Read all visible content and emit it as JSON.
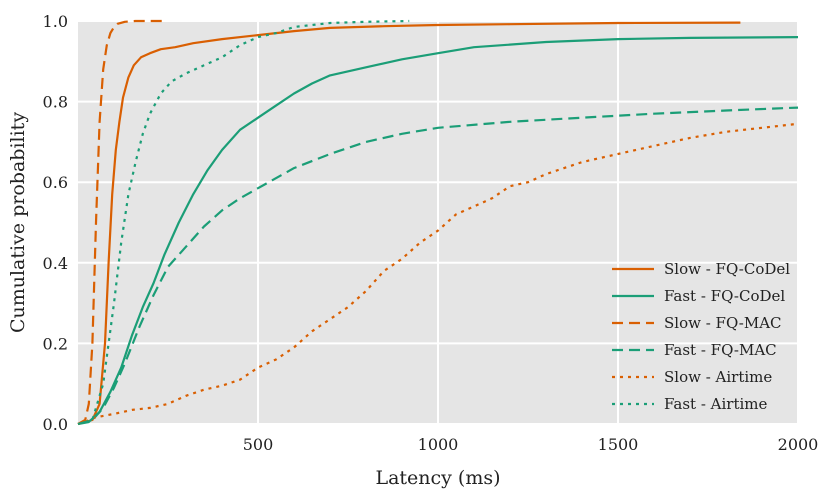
{
  "chart_data": {
    "type": "line",
    "title": "",
    "xlabel": "Latency (ms)",
    "ylabel": "Cumulative probability",
    "xlim": [
      0,
      2000
    ],
    "ylim": [
      0,
      1.0
    ],
    "xticks": [
      "500",
      "1000",
      "1500",
      "2000"
    ],
    "yticks": [
      "0.0",
      "0.2",
      "0.4",
      "0.6",
      "0.8",
      "1.0"
    ],
    "grid": true,
    "legend_position": "lower-right",
    "background_color": "#e5e5e5",
    "series": [
      {
        "name": "Slow - FQ-CoDel",
        "color": "#d95f02",
        "dash": "solid",
        "points": [
          [
            0,
            0
          ],
          [
            40,
            0.01
          ],
          [
            60,
            0.05
          ],
          [
            75,
            0.2
          ],
          [
            85,
            0.4
          ],
          [
            95,
            0.57
          ],
          [
            105,
            0.68
          ],
          [
            115,
            0.75
          ],
          [
            125,
            0.81
          ],
          [
            140,
            0.86
          ],
          [
            155,
            0.89
          ],
          [
            175,
            0.91
          ],
          [
            200,
            0.92
          ],
          [
            230,
            0.93
          ],
          [
            270,
            0.935
          ],
          [
            320,
            0.945
          ],
          [
            400,
            0.955
          ],
          [
            500,
            0.965
          ],
          [
            600,
            0.975
          ],
          [
            700,
            0.983
          ],
          [
            850,
            0.987
          ],
          [
            1000,
            0.99
          ],
          [
            1200,
            0.992
          ],
          [
            1500,
            0.995
          ],
          [
            1840,
            0.996
          ]
        ]
      },
      {
        "name": "Fast - FQ-CoDel",
        "color": "#1b9e77",
        "dash": "solid",
        "points": [
          [
            0,
            0
          ],
          [
            30,
            0.005
          ],
          [
            60,
            0.03
          ],
          [
            90,
            0.08
          ],
          [
            120,
            0.14
          ],
          [
            150,
            0.22
          ],
          [
            180,
            0.29
          ],
          [
            210,
            0.35
          ],
          [
            240,
            0.42
          ],
          [
            280,
            0.5
          ],
          [
            320,
            0.57
          ],
          [
            360,
            0.63
          ],
          [
            400,
            0.68
          ],
          [
            450,
            0.73
          ],
          [
            500,
            0.76
          ],
          [
            550,
            0.79
          ],
          [
            600,
            0.82
          ],
          [
            650,
            0.845
          ],
          [
            700,
            0.865
          ],
          [
            800,
            0.885
          ],
          [
            900,
            0.905
          ],
          [
            1000,
            0.92
          ],
          [
            1100,
            0.935
          ],
          [
            1300,
            0.948
          ],
          [
            1500,
            0.955
          ],
          [
            1700,
            0.958
          ],
          [
            2000,
            0.96
          ]
        ]
      },
      {
        "name": "Slow - FQ-MAC",
        "color": "#d95f02",
        "dash": "dashed",
        "points": [
          [
            0,
            0
          ],
          [
            20,
            0.01
          ],
          [
            30,
            0.05
          ],
          [
            40,
            0.2
          ],
          [
            50,
            0.5
          ],
          [
            60,
            0.75
          ],
          [
            70,
            0.88
          ],
          [
            80,
            0.94
          ],
          [
            90,
            0.97
          ],
          [
            100,
            0.985
          ],
          [
            110,
            0.993
          ],
          [
            130,
            0.998
          ],
          [
            160,
            1.0
          ],
          [
            240,
            1.0
          ]
        ]
      },
      {
        "name": "Fast - FQ-MAC",
        "color": "#1b9e77",
        "dash": "dashed",
        "points": [
          [
            0,
            0
          ],
          [
            40,
            0.01
          ],
          [
            70,
            0.04
          ],
          [
            100,
            0.09
          ],
          [
            130,
            0.15
          ],
          [
            170,
            0.24
          ],
          [
            210,
            0.32
          ],
          [
            250,
            0.39
          ],
          [
            300,
            0.44
          ],
          [
            350,
            0.49
          ],
          [
            400,
            0.53
          ],
          [
            450,
            0.56
          ],
          [
            500,
            0.585
          ],
          [
            600,
            0.635
          ],
          [
            700,
            0.67
          ],
          [
            800,
            0.7
          ],
          [
            900,
            0.72
          ],
          [
            1000,
            0.735
          ],
          [
            1200,
            0.75
          ],
          [
            1400,
            0.76
          ],
          [
            1600,
            0.77
          ],
          [
            1800,
            0.778
          ],
          [
            2000,
            0.785
          ]
        ]
      },
      {
        "name": "Slow - Airtime",
        "color": "#d95f02",
        "dash": "dotted",
        "points": [
          [
            0,
            0
          ],
          [
            20,
            0.005
          ],
          [
            40,
            0.015
          ],
          [
            70,
            0.02
          ],
          [
            100,
            0.025
          ],
          [
            150,
            0.035
          ],
          [
            200,
            0.04
          ],
          [
            250,
            0.05
          ],
          [
            300,
            0.07
          ],
          [
            350,
            0.085
          ],
          [
            400,
            0.095
          ],
          [
            450,
            0.11
          ],
          [
            500,
            0.14
          ],
          [
            550,
            0.16
          ],
          [
            600,
            0.19
          ],
          [
            650,
            0.23
          ],
          [
            700,
            0.26
          ],
          [
            750,
            0.29
          ],
          [
            800,
            0.33
          ],
          [
            850,
            0.38
          ],
          [
            900,
            0.41
          ],
          [
            950,
            0.45
          ],
          [
            1000,
            0.48
          ],
          [
            1050,
            0.52
          ],
          [
            1100,
            0.54
          ],
          [
            1150,
            0.56
          ],
          [
            1200,
            0.59
          ],
          [
            1250,
            0.6
          ],
          [
            1300,
            0.62
          ],
          [
            1400,
            0.65
          ],
          [
            1500,
            0.67
          ],
          [
            1600,
            0.69
          ],
          [
            1700,
            0.71
          ],
          [
            1800,
            0.725
          ],
          [
            1900,
            0.735
          ],
          [
            2000,
            0.745
          ]
        ]
      },
      {
        "name": "Fast - Airtime",
        "color": "#1b9e77",
        "dash": "dotted",
        "points": [
          [
            0,
            0
          ],
          [
            40,
            0.01
          ],
          [
            70,
            0.1
          ],
          [
            100,
            0.3
          ],
          [
            120,
            0.45
          ],
          [
            140,
            0.57
          ],
          [
            160,
            0.65
          ],
          [
            180,
            0.72
          ],
          [
            200,
            0.77
          ],
          [
            230,
            0.82
          ],
          [
            260,
            0.85
          ],
          [
            300,
            0.87
          ],
          [
            350,
            0.89
          ],
          [
            400,
            0.91
          ],
          [
            450,
            0.94
          ],
          [
            500,
            0.96
          ],
          [
            550,
            0.97
          ],
          [
            600,
            0.985
          ],
          [
            700,
            0.995
          ],
          [
            800,
            0.998
          ],
          [
            920,
            1.0
          ]
        ]
      }
    ]
  }
}
